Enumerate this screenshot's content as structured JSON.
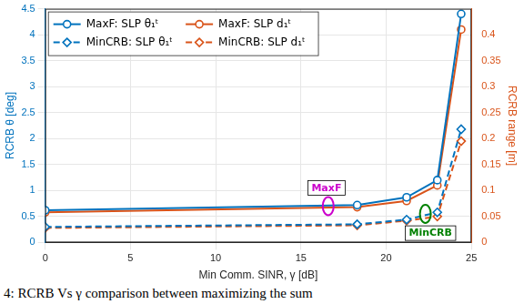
{
  "chart_data": {
    "type": "line",
    "caption": "4: RCRB Vs γ comparison between maximizing the sum",
    "x_label": "Min Comm. SINR, γ [dB]",
    "y_label": "RCRB θ [deg]",
    "y2_label": "RCRB range [m]",
    "y_color": "#0072bd",
    "y2_color": "#d95319",
    "xlim": [
      0,
      25
    ],
    "xticks": [
      0,
      5,
      10,
      15,
      20,
      25
    ],
    "ylim": [
      0,
      4.5
    ],
    "yticks": [
      0,
      0.5,
      1,
      1.5,
      2,
      2.5,
      3,
      3.5,
      4,
      4.5
    ],
    "y2lim": [
      0,
      0.45
    ],
    "y2ticks": [
      0,
      0.05,
      0.1,
      0.15,
      0.2,
      0.25,
      0.3,
      0.35,
      0.4
    ],
    "grid": true,
    "legend": "upper left",
    "x": [
      0,
      18.3,
      21.2,
      23,
      24.4
    ],
    "series": [
      {
        "name": "MaxF: SLP θ₁ᵗ",
        "color": "#0072bd",
        "marker": "circle",
        "line_style": "solid",
        "values": [
          0.62,
          0.72,
          0.87,
          1.2,
          4.4
        ]
      },
      {
        "name": "MaxF: SLP d₁ᵗ",
        "color": "#d95319",
        "marker": "circle",
        "line_style": "solid",
        "axis": "y2",
        "values": [
          0.058,
          0.068,
          0.08,
          0.11,
          0.41
        ]
      },
      {
        "name": "MinCRB: SLP θ₁ᵗ",
        "color": "#0072bd",
        "marker": "diamond",
        "line_style": "dashed",
        "values": [
          0.3,
          0.35,
          0.44,
          0.58,
          2.18
        ]
      },
      {
        "name": "MinCRB: SLP d₁ᵗ",
        "color": "#d95319",
        "marker": "diamond",
        "line_style": "dashed",
        "axis": "y2",
        "values": [
          0.028,
          0.033,
          0.042,
          0.05,
          0.195
        ]
      }
    ],
    "annotations": [
      {
        "text": "MaxF",
        "color": "#cc00cc",
        "x": 16.5,
        "y": 1.05,
        "target": {
          "x": 16.6,
          "y": 0.7
        }
      },
      {
        "text": "MinCRB",
        "color": "#008000",
        "x": 22.6,
        "y": 0.18,
        "target": {
          "x": 22.3,
          "y": 0.55
        }
      }
    ]
  }
}
